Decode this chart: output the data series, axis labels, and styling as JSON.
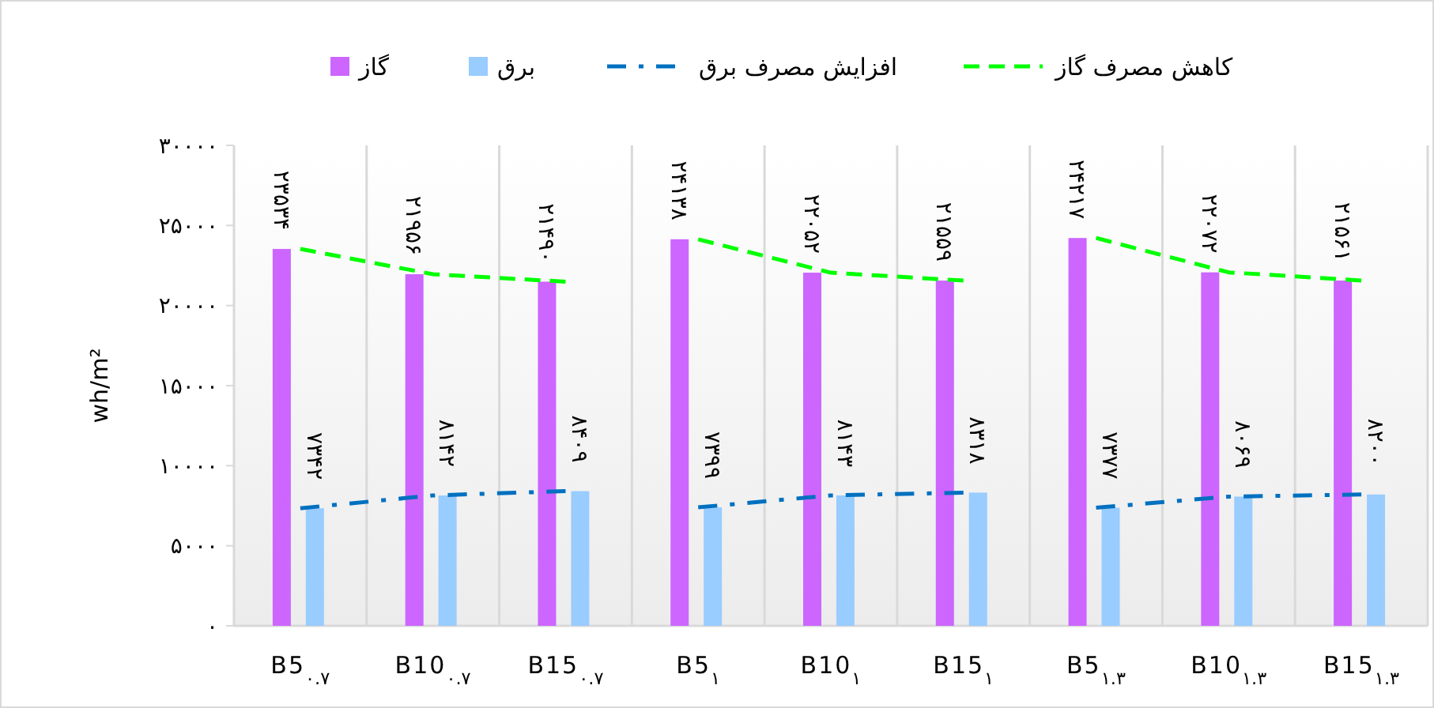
{
  "chart_data": {
    "type": "bar",
    "ylabel": "wh/m²",
    "categories": [
      "B5$_{۰.۷}$",
      "B10$_{۰.۷}$",
      "B15$_{۰.۷}$",
      "B5$_{۱}$",
      "B10$_{۱}$",
      "B15$_{۱}$",
      "B5$_{۱.۳}$",
      "B10$_{۱.۳}$",
      "B15$_{۱.۳}$"
    ],
    "series": [
      {
        "name": "گاز",
        "color": "#cc66ff",
        "values": [
          23534,
          21956,
          21490,
          24138,
          22052,
          21559,
          24217,
          22072,
          21561
        ],
        "value_labels": [
          "۲۳۵۳۴",
          "۲۱۹۵۶",
          "۲۱۴۹۰",
          "۲۴۱۳۸",
          "۲۲۰۵۲",
          "۲۱۵۵۹",
          "۲۴۲۱۷",
          "۲۲۰۷۲",
          "۲۱۵۶۱"
        ]
      },
      {
        "name": "برق",
        "color": "#99ccff",
        "values": [
          7342,
          8142,
          8409,
          7399,
          8143,
          8318,
          7377,
          8069,
          8200
        ],
        "value_labels": [
          "۷۳۴۲",
          "۸۱۴۲",
          "۸۴۰۹",
          "۷۳۹۹",
          "۸۱۴۳",
          "۸۳۱۸",
          "۷۳۷۷",
          "۸۰۶۹",
          "۸۲۰۰"
        ]
      },
      {
        "name": "افزایش مصرف برق",
        "type": "line",
        "color": "#0070c0",
        "line_style": "dashdot",
        "values": [
          7342,
          8142,
          8409,
          null,
          null,
          null,
          null,
          null,
          null
        ]
      },
      {
        "type": "line",
        "color": "#0070c0",
        "line_style": "dashdot",
        "values": [
          null,
          null,
          null,
          7399,
          8143,
          8318,
          null,
          null,
          null
        ]
      },
      {
        "type": "line",
        "color": "#0070c0",
        "line_style": "dashdot",
        "values": [
          null,
          null,
          null,
          null,
          null,
          null,
          7377,
          8069,
          8200
        ]
      },
      {
        "name": "کاهش مصرف گاز",
        "type": "line",
        "color": "#00ff00",
        "line_style": "dashed",
        "values": [
          23534,
          21956,
          21490,
          null,
          null,
          null,
          null,
          null,
          null
        ]
      },
      {
        "type": "line",
        "color": "#00ff00",
        "line_style": "dashed",
        "values": [
          null,
          null,
          null,
          24138,
          22052,
          21559,
          null,
          null,
          null
        ]
      },
      {
        "type": "line",
        "color": "#00ff00",
        "line_style": "dashed",
        "values": [
          null,
          null,
          null,
          null,
          null,
          null,
          24217,
          22072,
          21561
        ]
      }
    ],
    "ylim": [
      0,
      30000
    ],
    "yticks": [
      {
        "value": 0,
        "label": "۰"
      },
      {
        "value": 5000,
        "label": "۵۰۰۰"
      },
      {
        "value": 10000,
        "label": "۱۰۰۰۰"
      },
      {
        "value": 15000,
        "label": "۱۵۰۰۰"
      },
      {
        "value": 20000,
        "label": "۲۰۰۰۰"
      },
      {
        "value": 25000,
        "label": "۲۵۰۰۰"
      },
      {
        "value": 30000,
        "label": "۳۰۰۰۰"
      }
    ],
    "grid": "x",
    "legend": "top",
    "marker": "none"
  }
}
